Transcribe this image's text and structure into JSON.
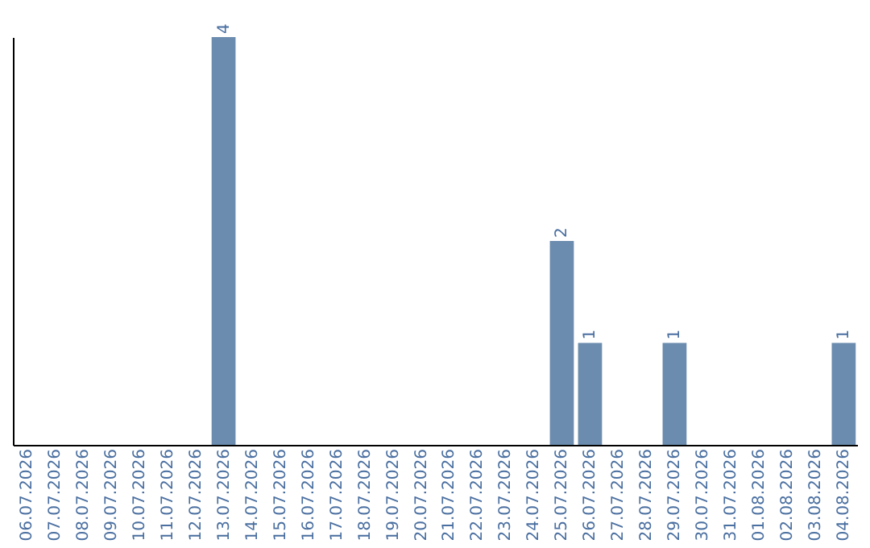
{
  "chart_data": {
    "type": "bar",
    "categories": [
      "06.07.2026",
      "07.07.2026",
      "08.07.2026",
      "09.07.2026",
      "10.07.2026",
      "11.07.2026",
      "12.07.2026",
      "13.07.2026",
      "14.07.2026",
      "15.07.2026",
      "16.07.2026",
      "17.07.2026",
      "18.07.2026",
      "19.07.2026",
      "20.07.2026",
      "21.07.2026",
      "22.07.2026",
      "23.07.2026",
      "24.07.2026",
      "25.07.2026",
      "26.07.2026",
      "27.07.2026",
      "28.07.2026",
      "29.07.2026",
      "30.07.2026",
      "31.07.2026",
      "01.08.2026",
      "02.08.2026",
      "03.08.2026",
      "04.08.2026"
    ],
    "values": [
      0,
      0,
      0,
      0,
      0,
      0,
      0,
      4,
      0,
      0,
      0,
      0,
      0,
      0,
      0,
      0,
      0,
      0,
      0,
      2,
      1,
      0,
      0,
      1,
      0,
      0,
      0,
      0,
      0,
      1
    ],
    "value_labels": [
      null,
      null,
      null,
      null,
      null,
      null,
      null,
      "4",
      null,
      null,
      null,
      null,
      null,
      null,
      null,
      null,
      null,
      null,
      null,
      "2",
      "1",
      null,
      null,
      "1",
      null,
      null,
      null,
      null,
      null,
      "1"
    ],
    "color": "#6b8cae",
    "tick_labels": "x",
    "grid": false
  }
}
